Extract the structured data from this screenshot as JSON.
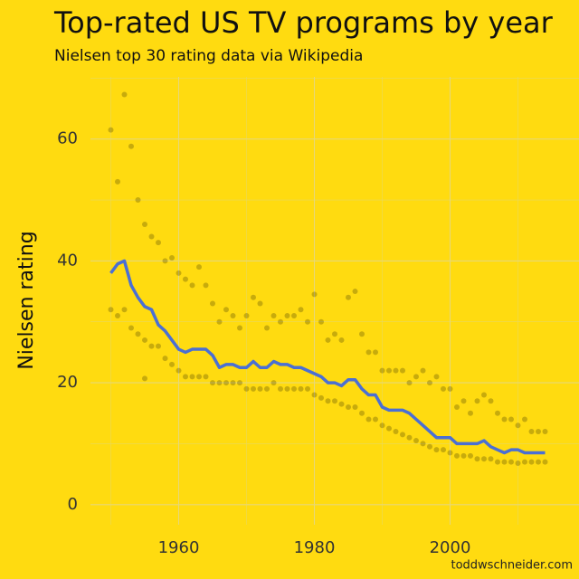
{
  "chart_data": {
    "type": "scatter",
    "title": "Top-rated US TV programs by year",
    "subtitle": "Nielsen top 30 rating data via Wikipedia",
    "y_label": "Nielsen rating",
    "caption": "toddwschneider.com",
    "xlim": [
      1947,
      2019
    ],
    "ylim": [
      -3.3,
      70.2
    ],
    "xticks": [
      1960,
      1980,
      2000
    ],
    "yticks": [
      0,
      20,
      40,
      60
    ],
    "x_minor_grid": [
      1950,
      1970,
      1990,
      2010
    ],
    "y_minor_grid": [
      10,
      30,
      50,
      70
    ],
    "grid": true,
    "background": "#ffdb10",
    "series": [
      {
        "type": "scatter",
        "color": "#000000",
        "x": [
          1950,
          1951,
          1952,
          1953,
          1954,
          1955,
          1956,
          1957,
          1958,
          1959,
          1960,
          1961,
          1962,
          1963,
          1964,
          1965,
          1966,
          1967,
          1968,
          1969,
          1970,
          1971,
          1972,
          1973,
          1974,
          1975,
          1976,
          1977,
          1978,
          1979,
          1980,
          1981,
          1982,
          1983,
          1984,
          1985,
          1986,
          1987,
          1988,
          1989,
          1990,
          1991,
          1992,
          1993,
          1994,
          1995,
          1996,
          1997,
          1998,
          1999,
          2000,
          2001,
          2002,
          2003,
          2004,
          2005,
          2006,
          2007,
          2008,
          2009,
          2010,
          2011,
          2012,
          2013,
          2014,
          1950,
          1951,
          1952,
          1953,
          1954,
          1955,
          1956,
          1957,
          1958,
          1959,
          1960,
          1961,
          1962,
          1963,
          1964,
          1965,
          1966,
          1967,
          1968,
          1969,
          1970,
          1971,
          1972,
          1973,
          1974,
          1975,
          1976,
          1977,
          1978,
          1979,
          1980,
          1981,
          1982,
          1983,
          1984,
          1985,
          1986,
          1987,
          1988,
          1989,
          1990,
          1991,
          1992,
          1993,
          1994,
          1995,
          1996,
          1997,
          1998,
          1999,
          2000,
          2001,
          2002,
          2003,
          2004,
          2005,
          2006,
          2007,
          2008,
          2009,
          2010,
          2011,
          2012,
          2013,
          2014,
          1955
        ],
        "values": [
          61.5,
          53,
          67.3,
          58.8,
          50,
          46,
          44,
          43,
          40,
          40.5,
          38,
          37,
          36,
          39,
          36,
          33,
          30,
          32,
          31,
          29,
          31,
          34,
          33,
          29,
          31,
          30,
          31,
          31,
          32,
          30,
          34.5,
          30,
          27,
          28,
          27,
          34,
          35,
          28,
          25,
          25,
          22,
          22,
          22,
          22,
          20,
          21,
          22,
          20,
          21,
          19,
          19,
          16,
          17,
          15,
          17,
          18,
          17,
          15,
          14,
          14,
          13,
          14,
          12,
          12,
          12,
          32,
          31,
          32,
          29,
          28,
          27,
          26,
          26,
          24,
          23,
          22,
          21,
          21,
          21,
          21,
          20,
          20,
          20,
          20,
          20,
          19,
          19,
          19,
          19,
          20,
          19,
          19,
          19,
          19,
          19,
          18,
          17.5,
          17,
          17,
          16.5,
          16,
          16,
          15,
          14,
          14,
          13,
          12.5,
          12,
          11.5,
          11,
          10.5,
          10,
          9.5,
          9,
          9,
          8.5,
          8,
          8,
          8,
          7.5,
          7.5,
          7.5,
          7,
          7,
          7,
          6.8,
          7,
          7,
          7,
          7,
          20.7
        ]
      },
      {
        "type": "line",
        "color": "#4a6fd4",
        "x": [
          1950,
          1951,
          1952,
          1953,
          1954,
          1955,
          1956,
          1957,
          1958,
          1959,
          1960,
          1961,
          1962,
          1963,
          1964,
          1965,
          1966,
          1967,
          1968,
          1969,
          1970,
          1971,
          1972,
          1973,
          1974,
          1975,
          1976,
          1977,
          1978,
          1979,
          1980,
          1981,
          1982,
          1983,
          1984,
          1985,
          1986,
          1987,
          1988,
          1989,
          1990,
          1991,
          1992,
          1993,
          1994,
          1995,
          1996,
          1997,
          1998,
          1999,
          2000,
          2001,
          2002,
          2003,
          2004,
          2005,
          2006,
          2007,
          2008,
          2009,
          2010,
          2011,
          2012,
          2013,
          2014
        ],
        "values": [
          38,
          39.5,
          40,
          36,
          34,
          32.5,
          32,
          29.5,
          28.5,
          27,
          25.5,
          25,
          25.5,
          25.5,
          25.5,
          24.5,
          22.5,
          23,
          23,
          22.5,
          22.5,
          23.5,
          22.5,
          22.5,
          23.5,
          23,
          23,
          22.5,
          22.5,
          22,
          21.5,
          21,
          20,
          20,
          19.5,
          20.5,
          20.5,
          19,
          18,
          18,
          16,
          15.5,
          15.5,
          15.5,
          15,
          14,
          13,
          12,
          11,
          11,
          11,
          10,
          10,
          10,
          10,
          10.5,
          9.5,
          9,
          8.5,
          9,
          9,
          8.5,
          8.5,
          8.5,
          8.5
        ]
      }
    ]
  }
}
